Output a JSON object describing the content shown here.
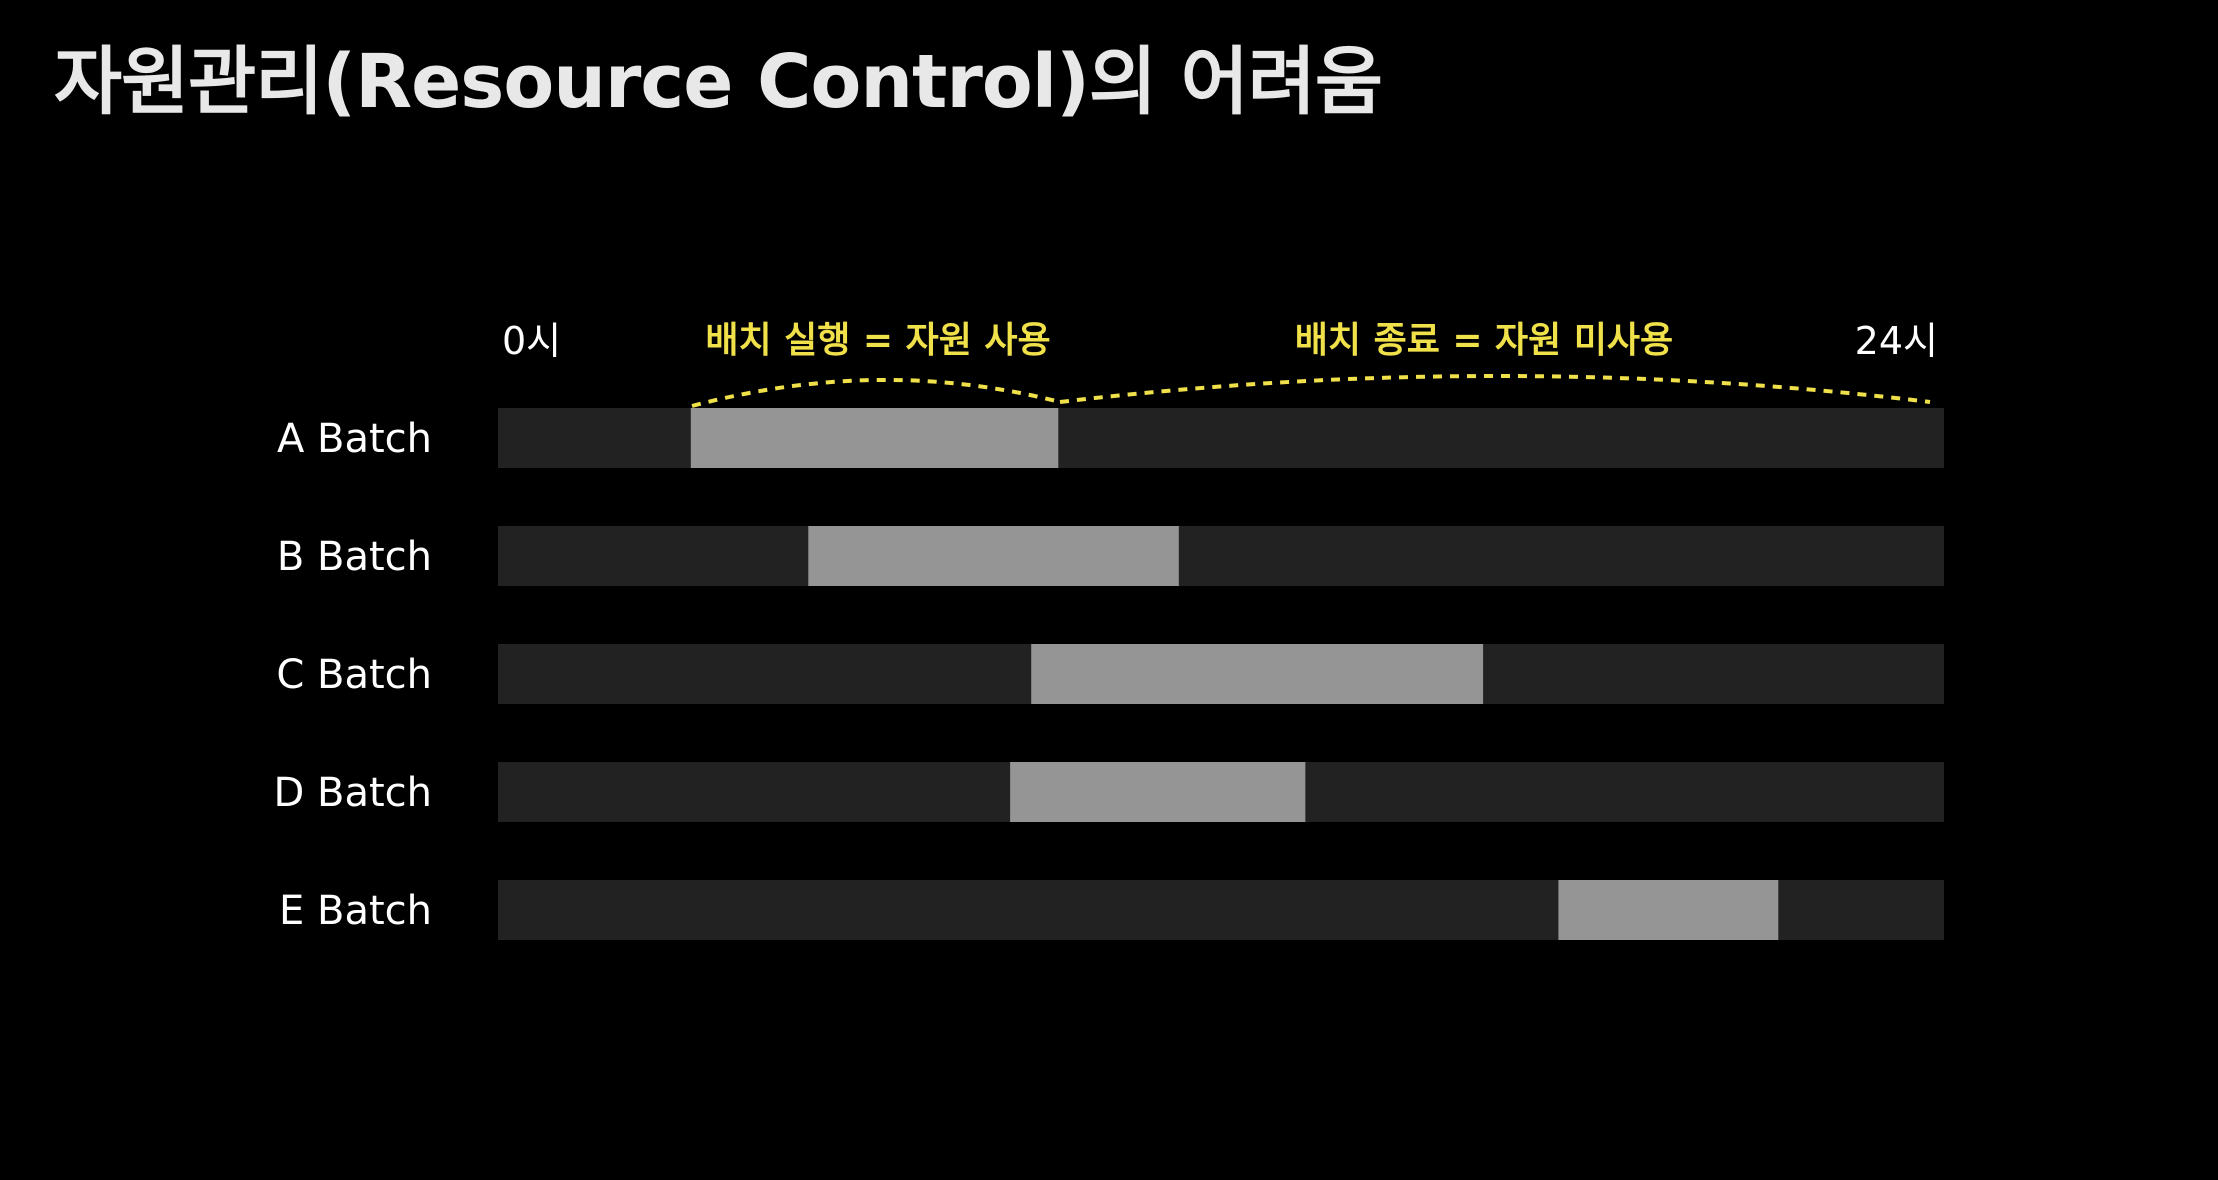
{
  "slide": {
    "title": "자원관리(Resource Control)의 어려움"
  },
  "timeline": {
    "start_label": "0시",
    "end_label": "24시",
    "range_hours": [
      0,
      24
    ]
  },
  "annotations": [
    {
      "name": "running-annotation",
      "text": "배치 실행 = 자원 사용"
    },
    {
      "name": "idle-annotation",
      "text": "배치 종료 = 자원 미사용"
    }
  ],
  "batches": [
    {
      "label": "A Batch",
      "start": 3.2,
      "end": 9.3
    },
    {
      "label": "B Batch",
      "start": 5.15,
      "end": 11.3
    },
    {
      "label": "C Batch",
      "start": 8.85,
      "end": 16.35
    },
    {
      "label": "D Batch",
      "start": 8.5,
      "end": 13.4
    },
    {
      "label": "E Batch",
      "start": 17.6,
      "end": 21.25
    }
  ],
  "colors": {
    "background": "#000000",
    "track": "#222222",
    "active": "#959595",
    "highlight": "#f0e04a",
    "text": "#ffffff"
  }
}
